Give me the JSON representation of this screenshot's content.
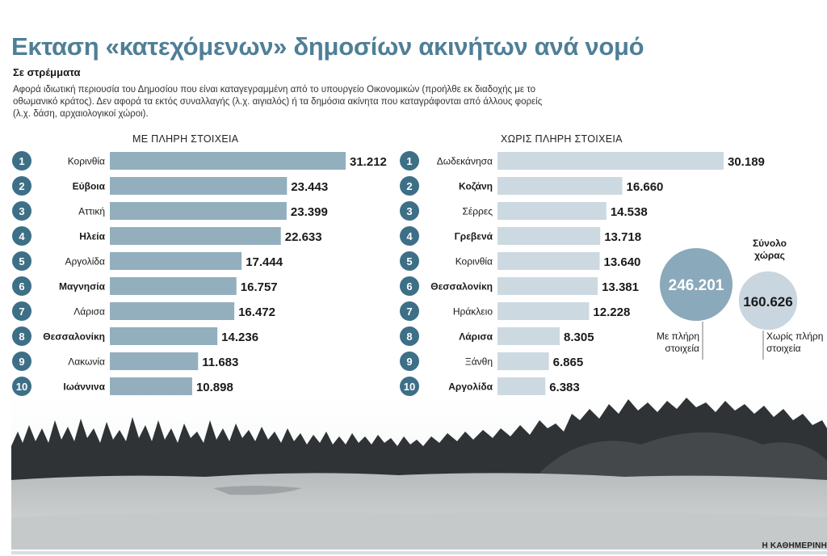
{
  "header": {
    "title": "Εκταση «κατεχόμενων» δημοσίων ακινήτων ανά νομό",
    "subtitle": "Σε στρέμματα",
    "description": "Αφορά ιδιωτική περιουσία του Δημοσίου που είναι καταγεγραμμένη από το υπουργείο Οικονομικών (προήλθε εκ διαδοχής με το οθωμανικό κράτος). Δεν αφορά τα εκτός συναλλαγής (λ.χ. αιγιαλός) ή τα δημόσια ακίνητα που καταγράφονται από άλλους φορείς (λ.χ. δάση, αρχαιολογικοί χώροι)."
  },
  "colors": {
    "title": "#4f7f97",
    "badge": "#3d6f87",
    "bar_full": "#93afbe",
    "bar_partial": "#cdd9e1",
    "circle_full": "#8aa9ba",
    "circle_partial": "#c9d6df"
  },
  "chart_data": [
    {
      "type": "bar",
      "orientation": "horizontal",
      "title": "ΜΕ ΠΛΗΡΗ ΣΤΟΙΧΕΙΑ",
      "ranks": [
        "1",
        "2",
        "3",
        "4",
        "5",
        "6",
        "7",
        "8",
        "9",
        "10"
      ],
      "categories": [
        "Κορινθία",
        "Εύβοια",
        "Αττική",
        "Ηλεία",
        "Αργολίδα",
        "Μαγνησία",
        "Λάρισα",
        "Θεσσαλονίκη",
        "Λακωνία",
        "Ιωάννινα"
      ],
      "bold_categories": [
        "Εύβοια",
        "Ηλεία",
        "Μαγνησία",
        "Θεσσαλονίκη",
        "Ιωάννινα"
      ],
      "values": [
        31212,
        23443,
        23399,
        22633,
        17444,
        16757,
        16472,
        14236,
        11683,
        10898
      ],
      "value_labels": [
        "31.212",
        "23.443",
        "23.399",
        "22.633",
        "17.444",
        "16.757",
        "16.472",
        "14.236",
        "11.683",
        "10.898"
      ]
    },
    {
      "type": "bar",
      "orientation": "horizontal",
      "title": "ΧΩΡΙΣ ΠΛΗΡΗ ΣΤΟΙΧΕΙΑ",
      "ranks": [
        "1",
        "2",
        "3",
        "4",
        "5",
        "6",
        "7",
        "8",
        "9",
        "10"
      ],
      "categories": [
        "Δωδεκάνησα",
        "Κοζάνη",
        "Σέρρες",
        "Γρεβενά",
        "Κορινθία",
        "Θεσσαλονίκη",
        "Ηράκλειο",
        "Λάρισα",
        "Ξάνθη",
        "Αργολίδα"
      ],
      "bold_categories": [
        "Κοζάνη",
        "Γρεβενά",
        "Θεσσαλονίκη",
        "Λάρισα",
        "Αργολίδα"
      ],
      "values": [
        30189,
        16660,
        14538,
        13718,
        13640,
        13381,
        12228,
        8305,
        6865,
        6383
      ],
      "value_labels": [
        "30.189",
        "16.660",
        "14.538",
        "13.718",
        "13.640",
        "13.381",
        "12.228",
        "8.305",
        "6.865",
        "6.383"
      ]
    },
    {
      "type": "bubble",
      "title": "Σύνολο χώρας",
      "title_lines": [
        "Σύνολο",
        "χώρας"
      ],
      "items": [
        {
          "label_lines": [
            "Με πλήρη",
            "στοιχεία"
          ],
          "value": 246201,
          "value_label": "246.201"
        },
        {
          "label_lines": [
            "Χωρίς πλήρη",
            "στοιχεία"
          ],
          "value": 160626,
          "value_label": "160.626"
        }
      ]
    }
  ],
  "footer": {
    "credit": "Η ΚΑΘΗΜΕΡΙΝΗ"
  }
}
